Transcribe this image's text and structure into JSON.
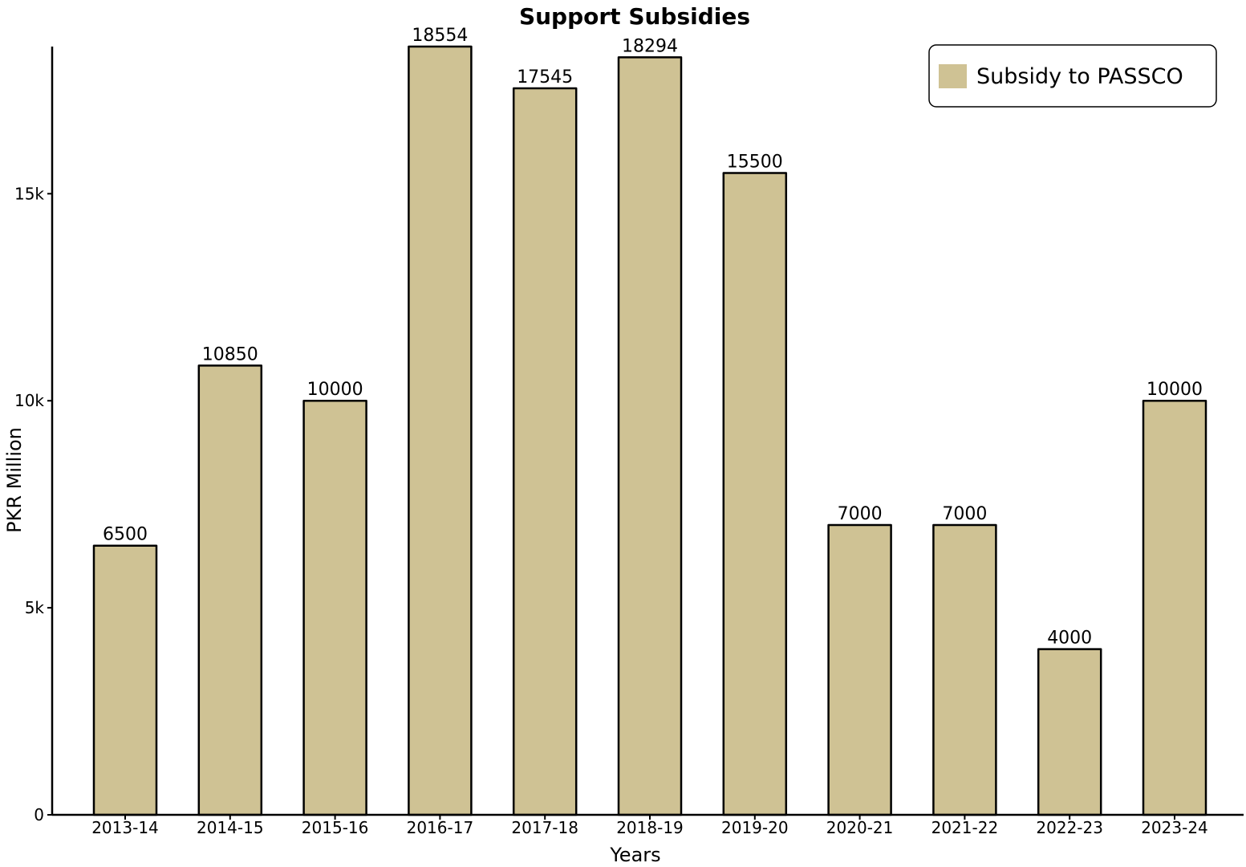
{
  "chart_data": {
    "type": "bar",
    "title": "Support Subsidies",
    "xlabel": "Years",
    "ylabel": "PKR Million",
    "categories": [
      "2013-14",
      "2014-15",
      "2015-16",
      "2016-17",
      "2017-18",
      "2018-19",
      "2019-20",
      "2020-21",
      "2021-22",
      "2022-23",
      "2023-24"
    ],
    "series": [
      {
        "name": "Subsidy to PASSCO",
        "values": [
          6500,
          10850,
          10000,
          18554,
          17545,
          18294,
          15500,
          7000,
          7000,
          4000,
          10000
        ],
        "color": "#cfc294"
      }
    ],
    "data_labels": [
      "6500",
      "10850",
      "10000",
      "18554",
      "17545",
      "18294",
      "15500",
      "7000",
      "7000",
      "4000",
      "10000"
    ],
    "ylim": [
      0,
      18554
    ],
    "yticks": [
      0,
      5000,
      10000,
      15000
    ],
    "ytick_labels": [
      "0",
      "5k",
      "10k",
      "15k"
    ],
    "legend_position": "top-right",
    "grid": false
  }
}
